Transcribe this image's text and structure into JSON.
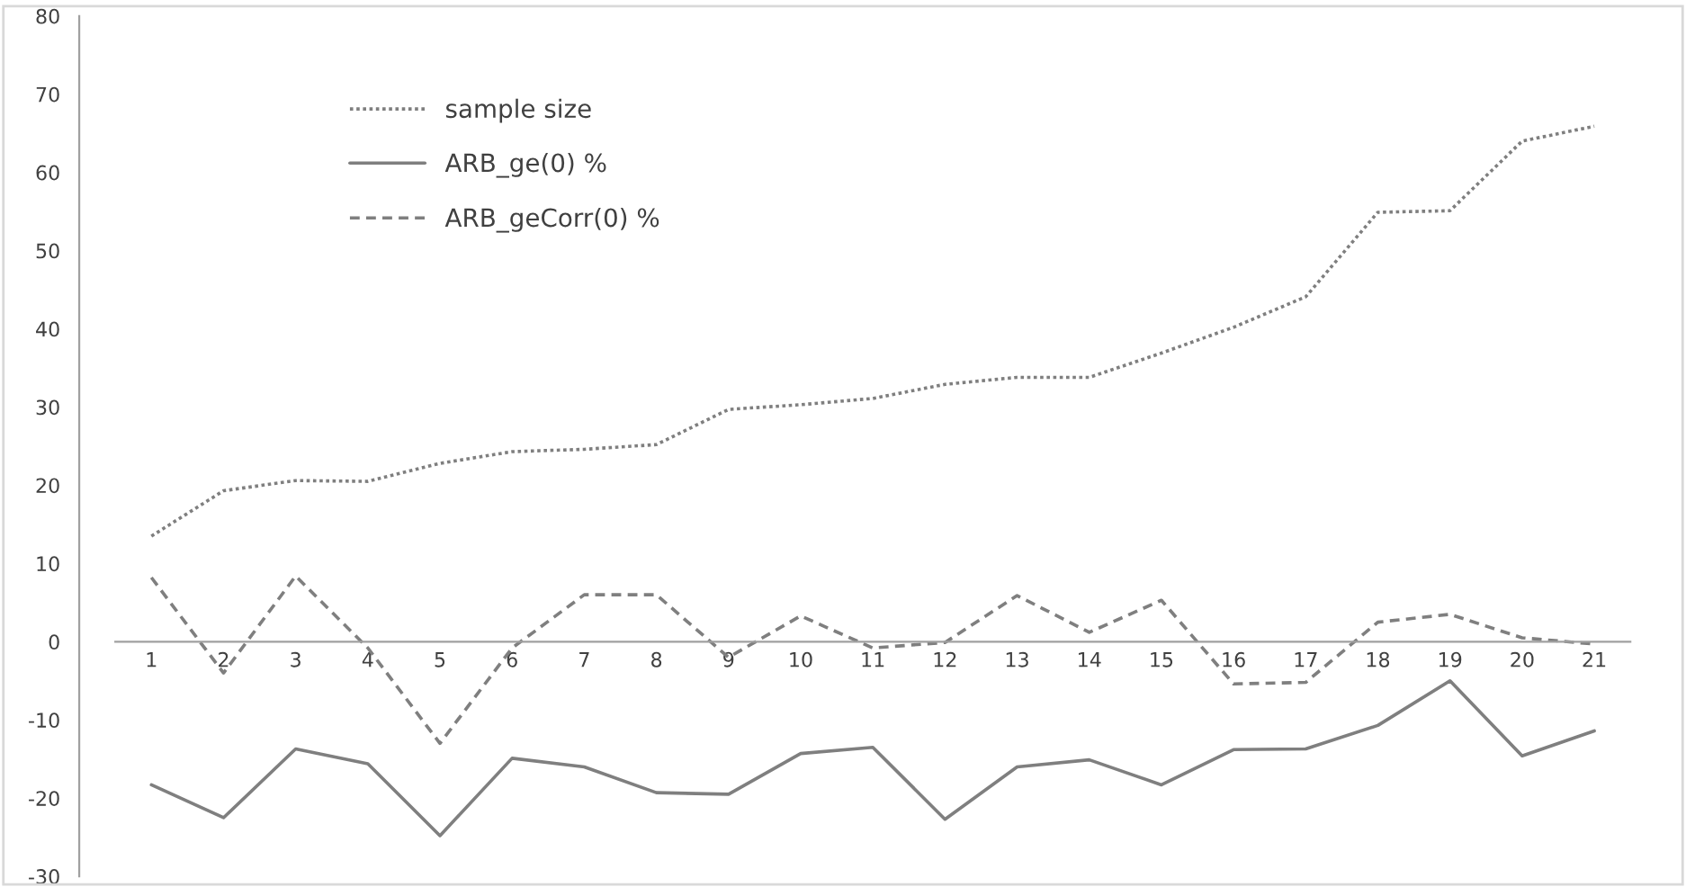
{
  "chart_data": {
    "type": "line",
    "categories": [
      "1",
      "2",
      "3",
      "4",
      "5",
      "6",
      "7",
      "8",
      "9",
      "10",
      "11",
      "12",
      "13",
      "14",
      "15",
      "16",
      "17",
      "18",
      "19",
      "20",
      "21"
    ],
    "series": [
      {
        "name": "sample size",
        "color": "#7f7f7f",
        "line_style": "dotted",
        "values": [
          13.5,
          19.3,
          20.6,
          20.5,
          22.8,
          24.3,
          24.6,
          25.2,
          29.7,
          30.3,
          31.1,
          32.9,
          33.8,
          33.8,
          36.9,
          40.2,
          44.1,
          54.9,
          55.1,
          64.0,
          65.9
        ]
      },
      {
        "name": "ARB_ge(0) %",
        "color": "#7f7f7f",
        "line_style": "solid",
        "values": [
          -18.3,
          -22.5,
          -13.7,
          -15.6,
          -24.8,
          -14.9,
          -16.0,
          -19.3,
          -19.5,
          -14.3,
          -13.5,
          -22.7,
          -16.0,
          -15.1,
          -18.3,
          -13.8,
          -13.7,
          -10.7,
          -5.0,
          -14.6,
          -11.4
        ]
      },
      {
        "name": "ARB_geCorr(0) %",
        "color": "#7f7f7f",
        "line_style": "dashed",
        "values": [
          8.2,
          -4.0,
          8.4,
          -0.8,
          -13.0,
          -0.8,
          6.0,
          6.0,
          -2.0,
          3.3,
          -0.8,
          -0.1,
          5.9,
          1.2,
          5.3,
          -5.4,
          -5.2,
          2.5,
          3.5,
          0.5,
          -0.3
        ]
      }
    ],
    "ylim": [
      -30,
      80
    ],
    "yticks": [
      -30,
      -20,
      -10,
      0,
      10,
      20,
      30,
      40,
      50,
      60,
      70,
      80
    ],
    "grid": false,
    "legend": "top left",
    "marker": "none"
  }
}
